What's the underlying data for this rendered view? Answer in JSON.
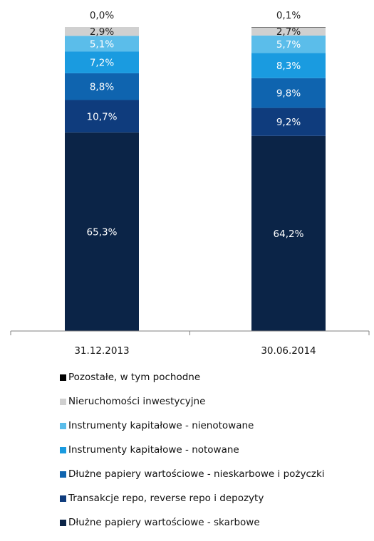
{
  "chart_data": {
    "type": "bar",
    "stacked": true,
    "categories": [
      "31.12.2013",
      "30.06.2014"
    ],
    "series": [
      {
        "name": "Dłużne papiery wartościowe - skarbowe",
        "values": [
          65.3,
          64.2
        ],
        "labels": [
          "65,3%",
          "64,2%"
        ],
        "color": "#0b2447",
        "label_color": "#ffffff"
      },
      {
        "name": "Transakcje repo, reverse repo i depozyty",
        "values": [
          10.7,
          9.2
        ],
        "labels": [
          "10,7%",
          "9,2%"
        ],
        "color": "#0f3c7d",
        "label_color": "#ffffff"
      },
      {
        "name": "Dłużne papiery wartościowe - nieskarbowe i pożyczki",
        "values": [
          8.8,
          9.8
        ],
        "labels": [
          "8,8%",
          "9,8%"
        ],
        "color": "#0f64af",
        "label_color": "#ffffff"
      },
      {
        "name": "Instrumenty kapitałowe - notowane",
        "values": [
          7.2,
          8.3
        ],
        "labels": [
          "7,2%",
          "8,3%"
        ],
        "color": "#1a9be0",
        "label_color": "#ffffff"
      },
      {
        "name": "Instrumenty kapitałowe - nienotowane",
        "values": [
          5.1,
          5.7
        ],
        "labels": [
          "5,1%",
          "5,7%"
        ],
        "color": "#5bbdea",
        "label_color": "#ffffff"
      },
      {
        "name": "Nieruchomości inwestycyjne",
        "values": [
          2.9,
          2.7
        ],
        "labels": [
          "2,9%",
          "2,7%"
        ],
        "color": "#d0d0d0",
        "label_color": "#222222"
      },
      {
        "name": "Pozostałe, w tym pochodne",
        "values": [
          0.0,
          0.1
        ],
        "labels": [
          "0,0%",
          "0,1%"
        ],
        "color": "#000000",
        "label_color": "#222222"
      }
    ],
    "ylim": [
      0,
      100
    ],
    "title": "",
    "xlabel": "",
    "ylabel": "",
    "legend_position": "bottom",
    "legend_order": [
      "Pozostałe, w tym pochodne",
      "Nieruchomości inwestycyjne",
      "Instrumenty kapitałowe - nienotowane",
      "Instrumenty kapitałowe - notowane",
      "Dłużne papiery wartościowe - nieskarbowe i pożyczki",
      "Transakcje repo, reverse repo i depozyty",
      "Dłużne papiery wartościowe - skarbowe"
    ]
  }
}
